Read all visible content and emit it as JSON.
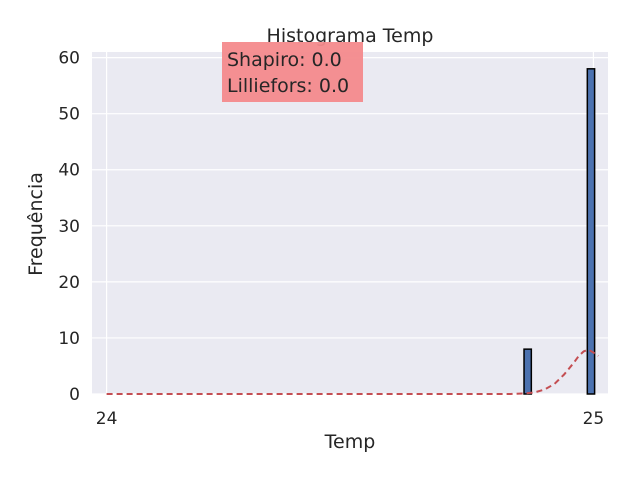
{
  "chart_data": {
    "type": "bar",
    "title": "Histograma Temp",
    "xlabel": "Temp",
    "ylabel": "Frequência",
    "xlim": [
      23.97,
      25.03
    ],
    "ylim": [
      0,
      61
    ],
    "x_ticks": [
      24,
      25
    ],
    "y_ticks": [
      0,
      10,
      20,
      30,
      40,
      50,
      60
    ],
    "grid": true,
    "bins": [
      {
        "x": 24.865,
        "width": 0.015,
        "value": 8
      },
      {
        "x": 24.995,
        "width": 0.015,
        "value": 58
      }
    ],
    "kde_curve": {
      "style": "dashed",
      "x": [
        24.0,
        24.83,
        24.86,
        24.88,
        24.9,
        24.92,
        24.94,
        24.96,
        24.97,
        24.98,
        24.99,
        25.0,
        25.01
      ],
      "y": [
        0,
        0,
        0.1,
        0.3,
        0.8,
        1.8,
        3.5,
        5.6,
        6.8,
        7.6,
        7.9,
        7.4,
        6.8
      ]
    },
    "annotation": {
      "lines": [
        "Shapiro: 0.0",
        "Lilliefors: 0.0"
      ],
      "position": "top-left"
    }
  },
  "colors": {
    "plot_background": "#eaeaf2",
    "grid": "#ffffff",
    "bar_fill": "#4c72b0",
    "bar_edge": "#000000",
    "kde_line": "#c44e52",
    "annotation_box": "#f48a8c"
  }
}
